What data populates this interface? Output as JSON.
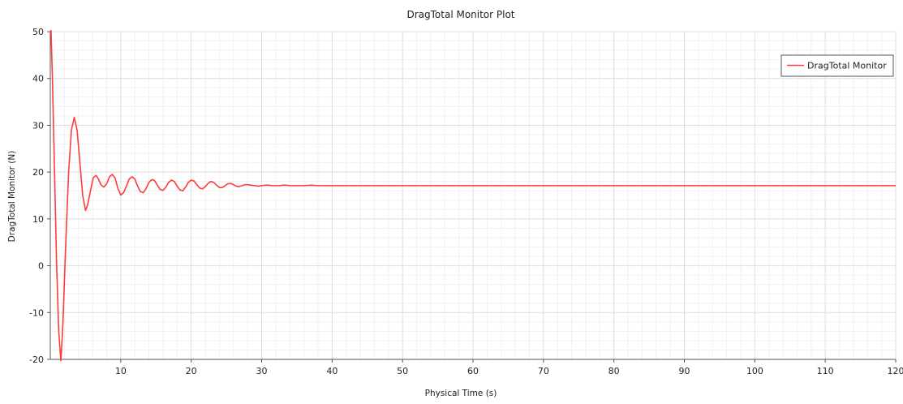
{
  "colors": {
    "series": "#ff3b3b",
    "major_grid": "#dcdcdc",
    "minor_grid": "#f0f0f0",
    "axis": "#555555",
    "background": "#ffffff"
  },
  "chart_data": {
    "type": "line",
    "title": "DragTotal Monitor Plot",
    "xlabel": "Physical Time (s)",
    "ylabel": "DragTotal Monitor (N)",
    "xlim": [
      0,
      120
    ],
    "ylim": [
      -20,
      50
    ],
    "x_ticks": [
      10,
      20,
      30,
      40,
      50,
      60,
      70,
      80,
      90,
      100,
      110,
      120
    ],
    "y_ticks": [
      -20,
      -10,
      0,
      10,
      20,
      30,
      40,
      50
    ],
    "grid": true,
    "minor_grid": true,
    "legend_position": "top-right",
    "series": [
      {
        "name": "DragTotal Monitor",
        "x": [
          0.1,
          0.3,
          0.6,
          0.9,
          1.2,
          1.5,
          1.8,
          2.2,
          2.6,
          3.0,
          3.4,
          3.8,
          4.2,
          4.6,
          5.0,
          5.3,
          5.7,
          6.1,
          6.5,
          6.8,
          7.2,
          7.6,
          8.0,
          8.4,
          8.8,
          9.2,
          9.6,
          10.0,
          10.4,
          10.8,
          11.2,
          11.6,
          12.0,
          12.4,
          12.8,
          13.2,
          13.6,
          14.0,
          14.4,
          14.8,
          15.2,
          15.6,
          16.0,
          16.4,
          16.8,
          17.2,
          17.6,
          18.0,
          18.4,
          18.8,
          19.2,
          19.6,
          20.0,
          20.4,
          20.8,
          21.2,
          21.6,
          22.0,
          22.4,
          22.8,
          23.2,
          23.6,
          24.0,
          24.4,
          24.8,
          25.2,
          25.6,
          26.0,
          26.4,
          26.8,
          27.2,
          27.6,
          28.0,
          28.5,
          29.0,
          29.5,
          30.0,
          30.5,
          31.0,
          31.5,
          32.0,
          32.5,
          33.0,
          33.5,
          34.0,
          35,
          36,
          37,
          38,
          40,
          45,
          50,
          55,
          60,
          65,
          70,
          75,
          80,
          85,
          90,
          95,
          100,
          105,
          110,
          115,
          120
        ],
        "y": [
          50.5,
          40,
          20,
          0,
          -14,
          -20.5,
          -12,
          5,
          20,
          29,
          31.7,
          29,
          22,
          15,
          11.8,
          13,
          16,
          18.8,
          19.3,
          18.6,
          17.3,
          16.8,
          17.5,
          19,
          19.5,
          18.7,
          16.5,
          15.1,
          15.6,
          17,
          18.5,
          19,
          18.5,
          17,
          15.8,
          15.6,
          16.5,
          17.8,
          18.4,
          18.2,
          17.2,
          16.3,
          16.1,
          16.8,
          17.8,
          18.3,
          18.0,
          17.0,
          16.2,
          16.0,
          16.8,
          17.8,
          18.3,
          18.1,
          17.3,
          16.6,
          16.4,
          16.9,
          17.6,
          18.0,
          17.8,
          17.2,
          16.7,
          16.7,
          17.1,
          17.5,
          17.6,
          17.3,
          17.0,
          16.9,
          17.1,
          17.3,
          17.3,
          17.2,
          17.1,
          17.0,
          17.1,
          17.2,
          17.2,
          17.1,
          17.1,
          17.1,
          17.2,
          17.2,
          17.1,
          17.1,
          17.1,
          17.2,
          17.1,
          17.1,
          17.1,
          17.1,
          17.1,
          17.1,
          17.1,
          17.1,
          17.1,
          17.1,
          17.1,
          17.1,
          17.1,
          17.1,
          17.1,
          17.1,
          17.1,
          17.1
        ]
      }
    ]
  }
}
